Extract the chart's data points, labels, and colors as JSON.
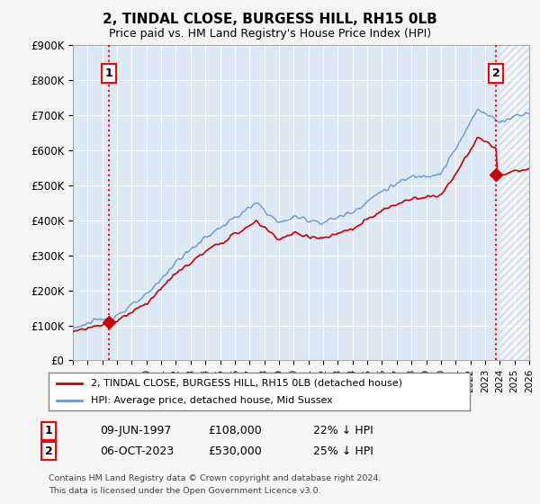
{
  "title": "2, TINDAL CLOSE, BURGESS HILL, RH15 0LB",
  "subtitle": "Price paid vs. HM Land Registry's House Price Index (HPI)",
  "ylim": [
    0,
    900000
  ],
  "xlim": [
    1995,
    2026
  ],
  "fig_bg_color": "#f5f5f5",
  "plot_bg_color": "#dce9f5",
  "grid_color": "#ffffff",
  "red_line_color": "#cc0000",
  "blue_line_color": "#6699cc",
  "hatch_color": "#cccccc",
  "point1_x": 1997.44,
  "point1_y": 108000,
  "point2_x": 2023.76,
  "point2_y": 530000,
  "legend_line1": "2, TINDAL CLOSE, BURGESS HILL, RH15 0LB (detached house)",
  "legend_line2": "HPI: Average price, detached house, Mid Sussex",
  "footer1": "Contains HM Land Registry data © Crown copyright and database right 2024.",
  "footer2": "This data is licensed under the Open Government Licence v3.0.",
  "table_rows": [
    [
      "1",
      "09-JUN-1997",
      "£108,000",
      "22% ↓ HPI"
    ],
    [
      "2",
      "06-OCT-2023",
      "£530,000",
      "25% ↓ HPI"
    ]
  ]
}
